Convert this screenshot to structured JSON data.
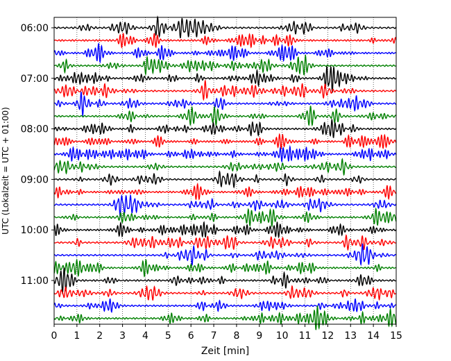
{
  "chart_data": {
    "type": "line",
    "title": "",
    "xlabel": "Zeit  [min]",
    "ylabel": "UTC (Lokalzeit = UTC + 01:00)",
    "xlim": [
      0,
      15
    ],
    "x_ticks": [
      0,
      1,
      2,
      3,
      4,
      5,
      6,
      7,
      8,
      9,
      10,
      11,
      12,
      13,
      14,
      15
    ],
    "y_tick_labels": [
      "06:00",
      "07:00",
      "08:00",
      "09:00",
      "10:00",
      "11:00"
    ],
    "traces_per_hour": 4,
    "trace_count": 24,
    "trace_colors": [
      "#000000",
      "#ff0000",
      "#0000ff",
      "#008000"
    ],
    "grid": "vertical dotted lines at each minute",
    "legend": "none"
  }
}
